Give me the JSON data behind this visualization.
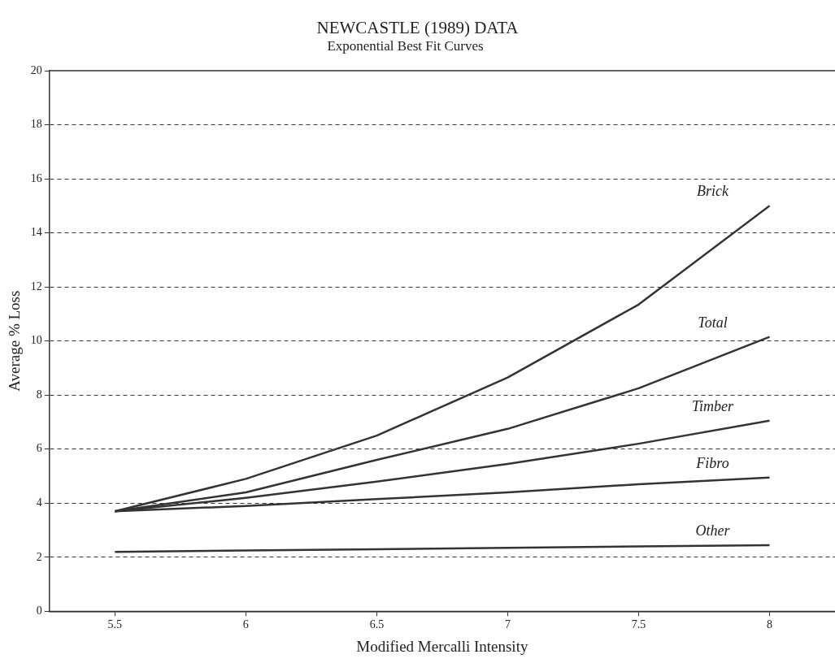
{
  "chart_data": {
    "type": "line",
    "title": "NEWCASTLE (1989) DATA",
    "subtitle": "Exponential Best Fit Curves",
    "xlabel": "Modified Mercalli Intensity",
    "ylabel": "Average % Loss",
    "x": [
      5.5,
      6,
      6.5,
      7,
      7.5,
      8
    ],
    "series": [
      {
        "name": "Brick",
        "color": "#333333",
        "values": [
          3.7,
          4.9,
          6.5,
          8.65,
          11.35,
          15.0
        ]
      },
      {
        "name": "Total",
        "color": "#333333",
        "values": [
          3.7,
          4.4,
          5.6,
          6.75,
          8.25,
          10.15
        ]
      },
      {
        "name": "Timber",
        "color": "#333333",
        "values": [
          3.7,
          4.2,
          4.8,
          5.45,
          6.2,
          7.05
        ]
      },
      {
        "name": "Fibro",
        "color": "#333333",
        "values": [
          3.7,
          3.9,
          4.15,
          4.4,
          4.7,
          4.95
        ]
      },
      {
        "name": "Other",
        "color": "#333333",
        "values": [
          2.2,
          2.25,
          2.3,
          2.35,
          2.4,
          2.45
        ]
      }
    ],
    "xlim": [
      5.25,
      8.25
    ],
    "xticks": [
      5.5,
      6,
      6.5,
      7,
      7.5,
      8
    ],
    "ylim": [
      0,
      20
    ],
    "yticks": [
      0,
      2,
      4,
      6,
      8,
      10,
      12,
      14,
      16,
      18,
      20
    ],
    "grid": "y",
    "legend": false,
    "marker": "none",
    "line_style": "solid"
  }
}
